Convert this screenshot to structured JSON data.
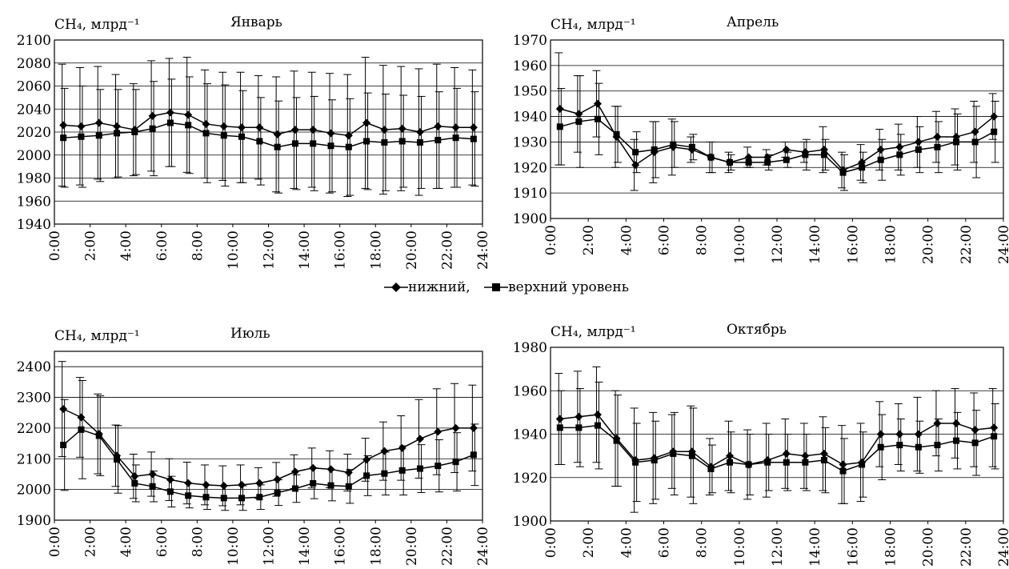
{
  "figure": {
    "legend": {
      "lower_label": "нижний,",
      "upper_label": "верхний уровень"
    }
  },
  "chart_data": [
    {
      "type": "line",
      "title": "Январь",
      "ylabel": "CH₄, млрд⁻¹",
      "xlabel": "",
      "xlim": [
        0,
        24
      ],
      "ylim": [
        1940,
        2100
      ],
      "yticks": [
        1940,
        1960,
        1980,
        2000,
        2020,
        2040,
        2060,
        2080,
        2100
      ],
      "xtick_labels": [
        "0:00",
        "2:00",
        "4:00",
        "6:00",
        "8:00",
        "10:00",
        "12:00",
        "14:00",
        "16:00",
        "18:00",
        "20:00",
        "22:00",
        "24:00"
      ],
      "grid": "horizontal",
      "x": [
        0.5,
        1.5,
        2.5,
        3.5,
        4.5,
        5.5,
        6.5,
        7.5,
        8.5,
        9.5,
        10.5,
        11.5,
        12.5,
        13.5,
        14.5,
        15.5,
        16.5,
        17.5,
        18.5,
        19.5,
        20.5,
        21.5,
        22.5,
        23.5
      ],
      "series": [
        {
          "name": "нижний",
          "marker": "diamond",
          "values": [
            2026,
            2025,
            2028,
            2025,
            2022,
            2034,
            2037,
            2035,
            2027,
            2025,
            2024,
            2024,
            2018,
            2022,
            2022,
            2019,
            2017,
            2028,
            2022,
            2023,
            2020,
            2025,
            2024,
            2024
          ],
          "error": [
            53,
            51,
            49,
            45,
            40,
            48,
            47,
            50,
            47,
            47,
            48,
            45,
            50,
            51,
            50,
            52,
            53,
            57,
            56,
            54,
            55,
            54,
            52,
            50
          ]
        },
        {
          "name": "верхний уровень",
          "marker": "square",
          "values": [
            2015,
            2016,
            2017,
            2019,
            2020,
            2023,
            2028,
            2026,
            2019,
            2017,
            2016,
            2012,
            2007,
            2010,
            2010,
            2008,
            2007,
            2012,
            2011,
            2012,
            2011,
            2013,
            2015,
            2014
          ],
          "error": [
            43,
            44,
            40,
            38,
            37,
            41,
            38,
            42,
            43,
            44,
            40,
            38,
            40,
            40,
            41,
            40,
            42,
            42,
            42,
            40,
            40,
            42,
            43,
            41
          ]
        }
      ]
    },
    {
      "type": "line",
      "title": "Апрель",
      "ylabel": "CH₄, млрд⁻¹",
      "xlabel": "",
      "xlim": [
        0,
        24
      ],
      "ylim": [
        1900,
        1970
      ],
      "yticks": [
        1900,
        1910,
        1920,
        1930,
        1940,
        1950,
        1960,
        1970
      ],
      "xtick_labels": [
        "0:00",
        "2:00",
        "4:00",
        "6:00",
        "8:00",
        "10:00",
        "12:00",
        "14:00",
        "16:00",
        "18:00",
        "20:00",
        "22:00",
        "24:00"
      ],
      "grid": "horizontal",
      "x": [
        0.5,
        1.5,
        2.5,
        3.5,
        4.5,
        5.5,
        6.5,
        7.5,
        8.5,
        9.5,
        10.5,
        11.5,
        12.5,
        13.5,
        14.5,
        15.5,
        16.5,
        17.5,
        18.5,
        19.5,
        20.5,
        21.5,
        22.5,
        23.5
      ],
      "series": [
        {
          "name": "нижний",
          "marker": "diamond",
          "values": [
            1943,
            1941,
            1945,
            1932,
            1921,
            1926,
            1928,
            1927,
            1924,
            1922,
            1924,
            1924,
            1927,
            1926,
            1927,
            1919,
            1922,
            1927,
            1928,
            1930,
            1932,
            1932,
            1934,
            1940
          ],
          "error": [
            22,
            15,
            13,
            12,
            10,
            12,
            11,
            5,
            6,
            4,
            4,
            3,
            3,
            4,
            9,
            7,
            7,
            8,
            9,
            10,
            10,
            11,
            12,
            9
          ]
        },
        {
          "name": "верхний уровень",
          "marker": "square",
          "values": [
            1936,
            1938,
            1939,
            1933,
            1926,
            1927,
            1929,
            1928,
            1924,
            1922,
            1922,
            1922,
            1923,
            1925,
            1925,
            1918,
            1920,
            1923,
            1925,
            1927,
            1928,
            1930,
            1930,
            1934
          ],
          "error": [
            15,
            18,
            14,
            11,
            8,
            11,
            9,
            5,
            6,
            3,
            2,
            3,
            3,
            6,
            6,
            7,
            6,
            8,
            8,
            9,
            10,
            11,
            14,
            12
          ]
        }
      ]
    },
    {
      "type": "line",
      "title": "Июль",
      "ylabel": "CH₄, млрд⁻¹",
      "xlabel": "",
      "xlim": [
        0,
        24
      ],
      "ylim": [
        1900,
        2450
      ],
      "yticks": [
        1900,
        2000,
        2100,
        2200,
        2300,
        2400
      ],
      "xtick_labels": [
        "0:00",
        "2:00",
        "4:00",
        "6:00",
        "8:00",
        "10:00",
        "12:00",
        "14:00",
        "16:00",
        "18:00",
        "20:00",
        "22:00",
        "24:00"
      ],
      "grid": "horizontal",
      "x": [
        0.5,
        1.5,
        2.5,
        3.5,
        4.5,
        5.5,
        6.5,
        7.5,
        8.5,
        9.5,
        10.5,
        11.5,
        12.5,
        13.5,
        14.5,
        15.5,
        16.5,
        17.5,
        18.5,
        19.5,
        20.5,
        21.5,
        22.5,
        23.5
      ],
      "series": [
        {
          "name": "нижний",
          "marker": "diamond",
          "values": [
            2262,
            2235,
            2181,
            2110,
            2043,
            2050,
            2032,
            2021,
            2015,
            2012,
            2015,
            2021,
            2033,
            2058,
            2070,
            2066,
            2055,
            2097,
            2125,
            2135,
            2165,
            2188,
            2200,
            2200
          ],
          "error": [
            155,
            130,
            130,
            100,
            72,
            72,
            68,
            68,
            65,
            65,
            65,
            50,
            55,
            55,
            65,
            60,
            60,
            70,
            95,
            105,
            128,
            140,
            145,
            140
          ]
        },
        {
          "name": "верхний уровень",
          "marker": "square",
          "values": [
            2145,
            2195,
            2175,
            2098,
            2020,
            2010,
            1993,
            1980,
            1975,
            1972,
            1972,
            1975,
            1990,
            2003,
            2020,
            2013,
            2010,
            2045,
            2052,
            2062,
            2068,
            2077,
            2090,
            2113
          ],
          "error": [
            148,
            160,
            130,
            110,
            60,
            50,
            50,
            40,
            40,
            40,
            40,
            40,
            42,
            45,
            50,
            50,
            55,
            65,
            70,
            80,
            78,
            85,
            95,
            100
          ]
        }
      ]
    },
    {
      "type": "line",
      "title": "Октябрь",
      "ylabel": "CH₄, млрд⁻¹",
      "xlabel": "",
      "xlim": [
        0,
        24
      ],
      "ylim": [
        1900,
        1980
      ],
      "yticks": [
        1900,
        1920,
        1940,
        1960,
        1980
      ],
      "xtick_labels": [
        "0:00",
        "2:00",
        "4:00",
        "6:00",
        "8:00",
        "10:00",
        "12:00",
        "14:00",
        "16:00",
        "18:00",
        "20:00",
        "22:00",
        "24:00"
      ],
      "grid": "horizontal",
      "x": [
        0.5,
        1.5,
        2.5,
        3.5,
        4.5,
        5.5,
        6.5,
        7.5,
        8.5,
        9.5,
        10.5,
        11.5,
        12.5,
        13.5,
        14.5,
        15.5,
        16.5,
        17.5,
        18.5,
        19.5,
        20.5,
        21.5,
        22.5,
        23.5
      ],
      "series": [
        {
          "name": "нижний",
          "marker": "diamond",
          "values": [
            1947,
            1948,
            1949,
            1938,
            1928,
            1929,
            1932,
            1932,
            1925,
            1930,
            1926,
            1928,
            1931,
            1930,
            1931,
            1926,
            1927,
            1940,
            1940,
            1940,
            1945,
            1945,
            1942,
            1943
          ],
          "error": [
            21,
            21,
            22,
            22,
            24,
            21,
            17,
            21,
            13,
            16,
            16,
            17,
            16,
            15,
            17,
            18,
            18,
            15,
            14,
            17,
            15,
            16,
            17,
            18
          ]
        },
        {
          "name": "верхний уровень",
          "marker": "square",
          "values": [
            1943,
            1943,
            1944,
            1937,
            1927,
            1928,
            1931,
            1930,
            1924,
            1927,
            1926,
            1927,
            1927,
            1927,
            1928,
            1923,
            1926,
            1934,
            1935,
            1934,
            1935,
            1937,
            1936,
            1939
          ],
          "error": [
            17,
            18,
            20,
            21,
            18,
            18,
            19,
            22,
            11,
            14,
            14,
            13,
            13,
            13,
            15,
            15,
            15,
            15,
            12,
            12,
            12,
            13,
            15,
            15
          ]
        }
      ]
    }
  ]
}
